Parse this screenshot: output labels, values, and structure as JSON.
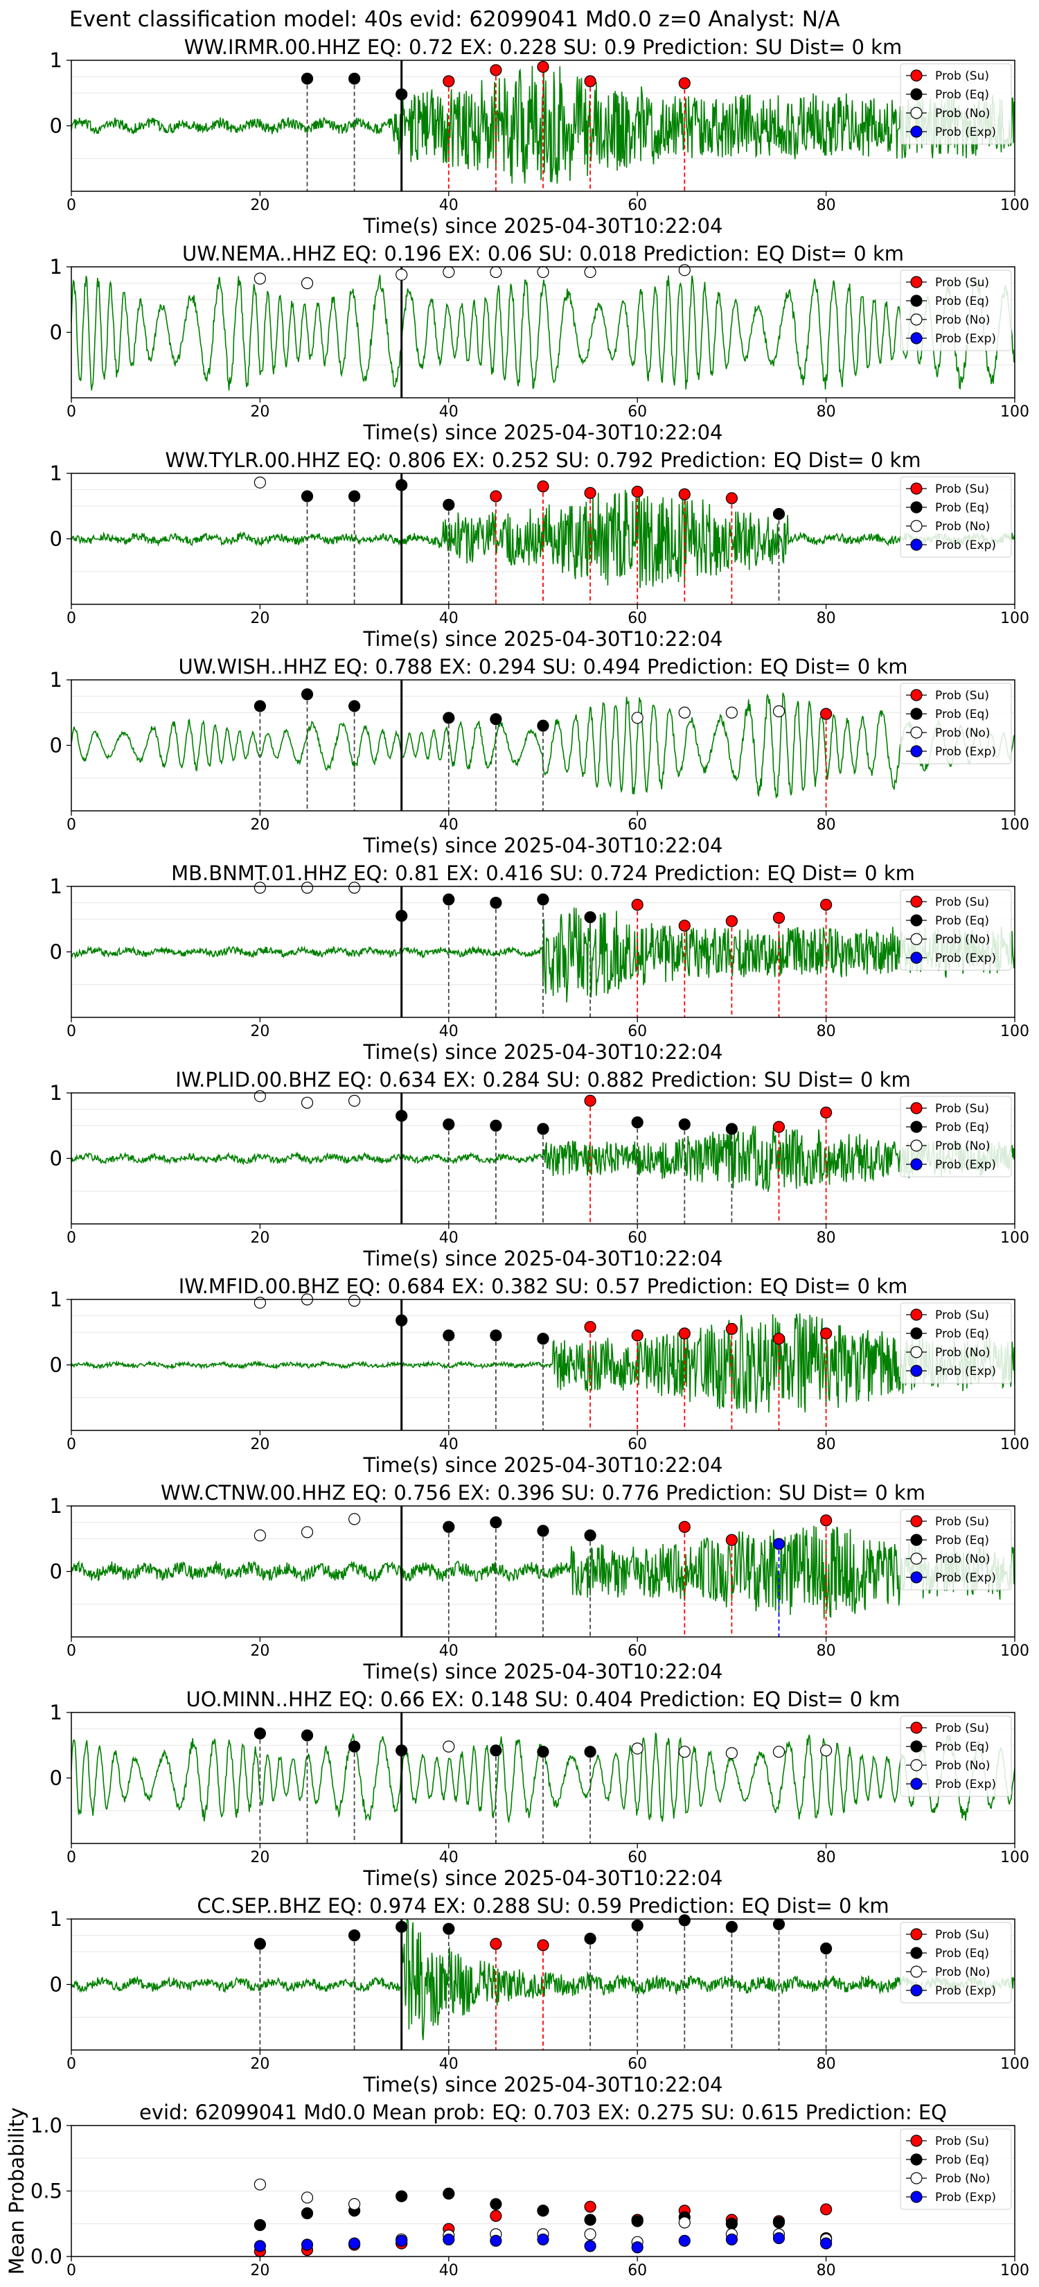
{
  "suptitle": "Event classification model: 40s evid: 62099041 Md0.0 z=0 Analyst: N/A",
  "colors": {
    "su": "#ff0000",
    "eq": "#000000",
    "no": "#ffffff",
    "exp": "#0000ff",
    "trace": "#008000"
  },
  "legend": [
    "Prob (Su)",
    "Prob (Eq)",
    "Prob (No)",
    "Prob (Exp)"
  ],
  "chart_data": [
    {
      "type": "line",
      "title": "WW.IRMR.00.HHZ   EQ: 0.72  EX: 0.228  SU: 0.9   Prediction: SU    Dist= 0 km",
      "xlabel": "Time(s) since 2025-04-30T10:22:04",
      "xlim": [
        0,
        100
      ],
      "ylim": [
        -1,
        1
      ],
      "yticks": [
        0,
        1
      ],
      "xticks": [
        0,
        20,
        40,
        60,
        80,
        100
      ],
      "pick": 35,
      "legend": "top-right",
      "grid": "y",
      "trace": {
        "pre": 0.08,
        "post": 0.85,
        "onset": 34,
        "end": 100,
        "style": "burst",
        "peak": 50
      },
      "points": [
        {
          "t": 25,
          "p": 0.72,
          "c": "eq"
        },
        {
          "t": 30,
          "p": 0.72,
          "c": "eq"
        },
        {
          "t": 35,
          "p": 0.48,
          "c": "eq"
        },
        {
          "t": 40,
          "p": 0.68,
          "c": "su"
        },
        {
          "t": 45,
          "p": 0.85,
          "c": "su"
        },
        {
          "t": 50,
          "p": 0.9,
          "c": "su"
        },
        {
          "t": 55,
          "p": 0.68,
          "c": "su"
        },
        {
          "t": 65,
          "p": 0.65,
          "c": "su"
        }
      ]
    },
    {
      "type": "line",
      "title": "UW.NEMA..HHZ   EQ: 0.196  EX: 0.06  SU: 0.018   Prediction: EQ    Dist= 0 km",
      "xlabel": "Time(s) since 2025-04-30T10:22:04",
      "xlim": [
        0,
        100
      ],
      "ylim": [
        -1,
        1
      ],
      "yticks": [
        0,
        1
      ],
      "xticks": [
        0,
        20,
        40,
        60,
        80,
        100
      ],
      "pick": 35,
      "legend": "top-right",
      "grid": "y",
      "trace": {
        "pre": 0.8,
        "post": 0.8,
        "onset": 0,
        "end": 100,
        "style": "wave",
        "peak": 0
      },
      "points": [
        {
          "t": 20,
          "p": 0.82,
          "c": "no"
        },
        {
          "t": 25,
          "p": 0.75,
          "c": "no"
        },
        {
          "t": 35,
          "p": 0.88,
          "c": "no"
        },
        {
          "t": 40,
          "p": 0.92,
          "c": "no"
        },
        {
          "t": 45,
          "p": 0.92,
          "c": "no"
        },
        {
          "t": 50,
          "p": 0.92,
          "c": "no"
        },
        {
          "t": 55,
          "p": 0.92,
          "c": "no"
        },
        {
          "t": 65,
          "p": 0.95,
          "c": "no"
        }
      ]
    },
    {
      "type": "line",
      "title": "WW.TYLR.00.HHZ   EQ: 0.806  EX: 0.252  SU: 0.792   Prediction: EQ    Dist= 0 km",
      "xlabel": "Time(s) since 2025-04-30T10:22:04",
      "xlim": [
        0,
        100
      ],
      "ylim": [
        -1,
        1
      ],
      "yticks": [
        0,
        1
      ],
      "xticks": [
        0,
        20,
        40,
        60,
        80,
        100
      ],
      "pick": 35,
      "legend": "top-right",
      "grid": "y",
      "trace": {
        "pre": 0.06,
        "post": 0.7,
        "onset": 39,
        "end": 76,
        "style": "burst",
        "peak": 60
      },
      "points": [
        {
          "t": 20,
          "p": 0.86,
          "c": "no"
        },
        {
          "t": 25,
          "p": 0.65,
          "c": "eq"
        },
        {
          "t": 30,
          "p": 0.65,
          "c": "eq"
        },
        {
          "t": 35,
          "p": 0.82,
          "c": "eq"
        },
        {
          "t": 40,
          "p": 0.52,
          "c": "eq"
        },
        {
          "t": 45,
          "p": 0.65,
          "c": "su"
        },
        {
          "t": 50,
          "p": 0.8,
          "c": "su"
        },
        {
          "t": 55,
          "p": 0.7,
          "c": "su"
        },
        {
          "t": 60,
          "p": 0.72,
          "c": "su"
        },
        {
          "t": 65,
          "p": 0.68,
          "c": "su"
        },
        {
          "t": 70,
          "p": 0.62,
          "c": "su"
        },
        {
          "t": 75,
          "p": 0.38,
          "c": "eq"
        }
      ]
    },
    {
      "type": "line",
      "title": "UW.WISH..HHZ   EQ: 0.788  EX: 0.294  SU: 0.494   Prediction: EQ    Dist= 0 km",
      "xlabel": "Time(s) since 2025-04-30T10:22:04",
      "xlim": [
        0,
        100
      ],
      "ylim": [
        -1,
        1
      ],
      "yticks": [
        0,
        1
      ],
      "xticks": [
        0,
        20,
        40,
        60,
        80,
        100
      ],
      "pick": 35,
      "legend": "top-right",
      "grid": "y",
      "trace": {
        "pre": 0.35,
        "post": 0.75,
        "onset": 50,
        "end": 88,
        "style": "wave",
        "peak": 80
      },
      "points": [
        {
          "t": 20,
          "p": 0.6,
          "c": "eq"
        },
        {
          "t": 25,
          "p": 0.78,
          "c": "eq"
        },
        {
          "t": 30,
          "p": 0.6,
          "c": "eq"
        },
        {
          "t": 40,
          "p": 0.42,
          "c": "eq"
        },
        {
          "t": 45,
          "p": 0.4,
          "c": "eq"
        },
        {
          "t": 50,
          "p": 0.3,
          "c": "eq"
        },
        {
          "t": 60,
          "p": 0.42,
          "c": "no"
        },
        {
          "t": 65,
          "p": 0.5,
          "c": "no"
        },
        {
          "t": 70,
          "p": 0.5,
          "c": "no"
        },
        {
          "t": 75,
          "p": 0.52,
          "c": "no"
        },
        {
          "t": 80,
          "p": 0.48,
          "c": "su"
        }
      ]
    },
    {
      "type": "line",
      "title": "MB.BNMT.01.HHZ   EQ: 0.81  EX: 0.416  SU: 0.724   Prediction: EQ    Dist= 0 km",
      "xlabel": "Time(s) since 2025-04-30T10:22:04",
      "xlim": [
        0,
        100
      ],
      "ylim": [
        -1,
        1
      ],
      "yticks": [
        0,
        1
      ],
      "xticks": [
        0,
        20,
        40,
        60,
        80,
        100
      ],
      "pick": 35,
      "legend": "top-right",
      "grid": "y",
      "trace": {
        "pre": 0.05,
        "post": 0.7,
        "onset": 50,
        "end": 100,
        "style": "burst",
        "peak": 52
      },
      "points": [
        {
          "t": 20,
          "p": 0.98,
          "c": "no"
        },
        {
          "t": 25,
          "p": 0.98,
          "c": "no"
        },
        {
          "t": 30,
          "p": 0.98,
          "c": "no"
        },
        {
          "t": 35,
          "p": 0.55,
          "c": "eq"
        },
        {
          "t": 40,
          "p": 0.8,
          "c": "eq"
        },
        {
          "t": 45,
          "p": 0.75,
          "c": "eq"
        },
        {
          "t": 50,
          "p": 0.8,
          "c": "eq"
        },
        {
          "t": 55,
          "p": 0.53,
          "c": "eq"
        },
        {
          "t": 60,
          "p": 0.72,
          "c": "su"
        },
        {
          "t": 65,
          "p": 0.4,
          "c": "su"
        },
        {
          "t": 70,
          "p": 0.47,
          "c": "su"
        },
        {
          "t": 75,
          "p": 0.52,
          "c": "su"
        },
        {
          "t": 80,
          "p": 0.72,
          "c": "su"
        }
      ]
    },
    {
      "type": "line",
      "title": "IW.PLID.00.BHZ   EQ: 0.634  EX: 0.284  SU: 0.882   Prediction: SU    Dist= 0 km",
      "xlabel": "Time(s) since 2025-04-30T10:22:04",
      "xlim": [
        0,
        100
      ],
      "ylim": [
        -1,
        1
      ],
      "yticks": [
        0,
        1
      ],
      "xticks": [
        0,
        20,
        40,
        60,
        80,
        100
      ],
      "pick": 35,
      "legend": "top-right",
      "grid": "y",
      "trace": {
        "pre": 0.05,
        "post": 0.45,
        "onset": 50,
        "end": 100,
        "style": "burst",
        "peak": 75
      },
      "points": [
        {
          "t": 20,
          "p": 0.95,
          "c": "no"
        },
        {
          "t": 25,
          "p": 0.85,
          "c": "no"
        },
        {
          "t": 30,
          "p": 0.88,
          "c": "no"
        },
        {
          "t": 35,
          "p": 0.65,
          "c": "eq"
        },
        {
          "t": 40,
          "p": 0.52,
          "c": "eq"
        },
        {
          "t": 45,
          "p": 0.5,
          "c": "eq"
        },
        {
          "t": 50,
          "p": 0.45,
          "c": "eq"
        },
        {
          "t": 55,
          "p": 0.88,
          "c": "su"
        },
        {
          "t": 60,
          "p": 0.55,
          "c": "eq"
        },
        {
          "t": 65,
          "p": 0.52,
          "c": "eq"
        },
        {
          "t": 70,
          "p": 0.45,
          "c": "eq"
        },
        {
          "t": 75,
          "p": 0.48,
          "c": "su"
        },
        {
          "t": 80,
          "p": 0.7,
          "c": "su"
        }
      ]
    },
    {
      "type": "line",
      "title": "IW.MFID.00.BHZ   EQ: 0.684  EX: 0.382  SU: 0.57   Prediction: EQ    Dist= 0 km",
      "xlabel": "Time(s) since 2025-04-30T10:22:04",
      "xlim": [
        0,
        100
      ],
      "ylim": [
        -1,
        1
      ],
      "yticks": [
        0,
        1
      ],
      "xticks": [
        0,
        20,
        40,
        60,
        80,
        100
      ],
      "pick": 35,
      "legend": "top-right",
      "grid": "y",
      "trace": {
        "pre": 0.03,
        "post": 0.8,
        "onset": 51,
        "end": 100,
        "style": "burst",
        "peak": 75
      },
      "points": [
        {
          "t": 20,
          "p": 0.95,
          "c": "no"
        },
        {
          "t": 25,
          "p": 1.0,
          "c": "no"
        },
        {
          "t": 30,
          "p": 0.98,
          "c": "no"
        },
        {
          "t": 35,
          "p": 0.68,
          "c": "eq"
        },
        {
          "t": 40,
          "p": 0.45,
          "c": "eq"
        },
        {
          "t": 45,
          "p": 0.45,
          "c": "eq"
        },
        {
          "t": 50,
          "p": 0.4,
          "c": "eq"
        },
        {
          "t": 55,
          "p": 0.58,
          "c": "su"
        },
        {
          "t": 60,
          "p": 0.45,
          "c": "su"
        },
        {
          "t": 65,
          "p": 0.48,
          "c": "su"
        },
        {
          "t": 70,
          "p": 0.55,
          "c": "su"
        },
        {
          "t": 75,
          "p": 0.4,
          "c": "su"
        },
        {
          "t": 80,
          "p": 0.48,
          "c": "su"
        }
      ]
    },
    {
      "type": "line",
      "title": "WW.CTNW.00.HHZ   EQ: 0.756  EX: 0.396  SU: 0.776   Prediction: SU    Dist= 0 km",
      "xlabel": "Time(s) since 2025-04-30T10:22:04",
      "xlim": [
        0,
        100
      ],
      "ylim": [
        -1,
        1
      ],
      "yticks": [
        0,
        1
      ],
      "xticks": [
        0,
        20,
        40,
        60,
        80,
        100
      ],
      "pick": 35,
      "legend": "top-right",
      "grid": "y",
      "trace": {
        "pre": 0.1,
        "post": 0.6,
        "onset": 53,
        "end": 100,
        "style": "burst",
        "peak": 78
      },
      "points": [
        {
          "t": 20,
          "p": 0.55,
          "c": "no"
        },
        {
          "t": 25,
          "p": 0.6,
          "c": "no"
        },
        {
          "t": 30,
          "p": 0.8,
          "c": "no"
        },
        {
          "t": 40,
          "p": 0.68,
          "c": "eq"
        },
        {
          "t": 45,
          "p": 0.75,
          "c": "eq"
        },
        {
          "t": 50,
          "p": 0.62,
          "c": "eq"
        },
        {
          "t": 55,
          "p": 0.55,
          "c": "eq"
        },
        {
          "t": 65,
          "p": 0.68,
          "c": "su"
        },
        {
          "t": 70,
          "p": 0.48,
          "c": "su"
        },
        {
          "t": 75,
          "p": 0.42,
          "c": "exp"
        },
        {
          "t": 80,
          "p": 0.78,
          "c": "su"
        }
      ]
    },
    {
      "type": "line",
      "title": "UO.MINN..HHZ   EQ: 0.66  EX: 0.148  SU: 0.404   Prediction: EQ    Dist= 0 km",
      "xlabel": "Time(s) since 2025-04-30T10:22:04",
      "xlim": [
        0,
        100
      ],
      "ylim": [
        -1,
        1
      ],
      "yticks": [
        0,
        1
      ],
      "xticks": [
        0,
        20,
        40,
        60,
        80,
        100
      ],
      "pick": 35,
      "legend": "top-right",
      "grid": "y",
      "trace": {
        "pre": 0.6,
        "post": 0.6,
        "onset": 0,
        "end": 100,
        "style": "wave",
        "peak": 0
      },
      "points": [
        {
          "t": 20,
          "p": 0.68,
          "c": "eq"
        },
        {
          "t": 25,
          "p": 0.65,
          "c": "eq"
        },
        {
          "t": 30,
          "p": 0.48,
          "c": "eq"
        },
        {
          "t": 35,
          "p": 0.42,
          "c": "eq"
        },
        {
          "t": 40,
          "p": 0.48,
          "c": "no"
        },
        {
          "t": 45,
          "p": 0.42,
          "c": "eq"
        },
        {
          "t": 50,
          "p": 0.4,
          "c": "eq"
        },
        {
          "t": 55,
          "p": 0.4,
          "c": "eq"
        },
        {
          "t": 60,
          "p": 0.45,
          "c": "no"
        },
        {
          "t": 65,
          "p": 0.4,
          "c": "no"
        },
        {
          "t": 70,
          "p": 0.38,
          "c": "no"
        },
        {
          "t": 75,
          "p": 0.4,
          "c": "no"
        },
        {
          "t": 80,
          "p": 0.42,
          "c": "no"
        }
      ]
    },
    {
      "type": "line",
      "title": "CC.SEP..BHZ   EQ: 0.974  EX: 0.288  SU: 0.59   Prediction: EQ    Dist= 0 km",
      "xlabel": "Time(s) since 2025-04-30T10:22:04",
      "xlim": [
        0,
        100
      ],
      "ylim": [
        -1,
        1
      ],
      "yticks": [
        0,
        1
      ],
      "xticks": [
        0,
        20,
        40,
        60,
        80,
        100
      ],
      "pick": 35,
      "legend": "top-right",
      "grid": "y",
      "trace": {
        "pre": 0.07,
        "post": 0.12,
        "onset": 35,
        "end": 100,
        "style": "decay",
        "peak": 36
      },
      "points": [
        {
          "t": 20,
          "p": 0.62,
          "c": "eq"
        },
        {
          "t": 30,
          "p": 0.75,
          "c": "eq"
        },
        {
          "t": 35,
          "p": 0.88,
          "c": "eq"
        },
        {
          "t": 40,
          "p": 0.85,
          "c": "eq"
        },
        {
          "t": 45,
          "p": 0.62,
          "c": "su"
        },
        {
          "t": 50,
          "p": 0.6,
          "c": "su"
        },
        {
          "t": 55,
          "p": 0.7,
          "c": "eq"
        },
        {
          "t": 60,
          "p": 0.9,
          "c": "eq"
        },
        {
          "t": 65,
          "p": 0.98,
          "c": "eq"
        },
        {
          "t": 70,
          "p": 0.88,
          "c": "eq"
        },
        {
          "t": 75,
          "p": 0.92,
          "c": "eq"
        },
        {
          "t": 80,
          "p": 0.55,
          "c": "eq"
        }
      ]
    },
    {
      "type": "scatter",
      "title": "evid: 62099041  Md0.0   Mean prob:   EQ: 0.703  EX: 0.275  SU: 0.615   Prediction: EQ",
      "ylabel": "Mean Probability",
      "xlim": [
        0,
        100
      ],
      "ylim": [
        0,
        1
      ],
      "yticks": [
        0.0,
        0.5,
        1.0
      ],
      "xticks": [
        0,
        20,
        40,
        60,
        80,
        100
      ],
      "legend": "top-right",
      "grid": "y",
      "series": [
        {
          "name": "Prob (Su)",
          "c": "su",
          "x": [
            20,
            25,
            30,
            35,
            40,
            45,
            50,
            55,
            60,
            65,
            70,
            75,
            80
          ],
          "values": [
            0.04,
            0.05,
            0.09,
            0.1,
            0.21,
            0.31,
            0.35,
            0.38,
            0.28,
            0.35,
            0.28,
            0.27,
            0.36
          ]
        },
        {
          "name": "Prob (Eq)",
          "c": "eq",
          "x": [
            20,
            25,
            30,
            35,
            40,
            45,
            50,
            55,
            60,
            65,
            70,
            75,
            80
          ],
          "values": [
            0.24,
            0.33,
            0.35,
            0.46,
            0.48,
            0.4,
            0.35,
            0.28,
            0.27,
            0.3,
            0.25,
            0.26,
            0.14
          ]
        },
        {
          "name": "Prob (No)",
          "c": "no",
          "x": [
            20,
            25,
            30,
            35,
            40,
            45,
            50,
            55,
            60,
            65,
            70,
            75,
            80
          ],
          "values": [
            0.55,
            0.45,
            0.4,
            0.13,
            0.16,
            0.17,
            0.17,
            0.17,
            0.11,
            0.26,
            0.17,
            0.17,
            0.13
          ]
        },
        {
          "name": "Prob (Exp)",
          "c": "exp",
          "x": [
            20,
            25,
            30,
            35,
            40,
            45,
            50,
            55,
            60,
            65,
            70,
            75,
            80
          ],
          "values": [
            0.08,
            0.09,
            0.1,
            0.12,
            0.13,
            0.12,
            0.13,
            0.08,
            0.07,
            0.12,
            0.13,
            0.14,
            0.1
          ]
        }
      ]
    }
  ]
}
